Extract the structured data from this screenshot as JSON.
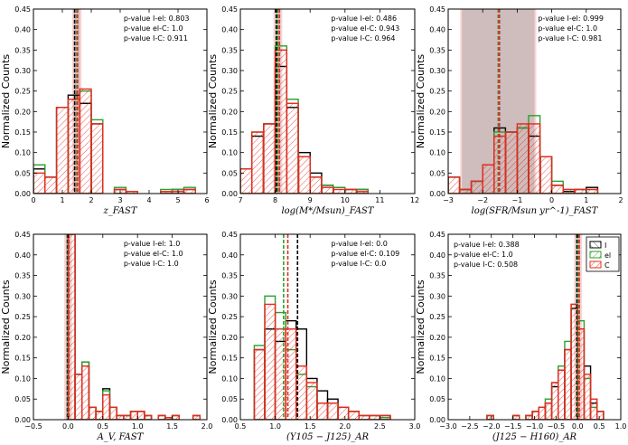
{
  "colors": {
    "I": "#000000",
    "el": "#2ca02c",
    "C": "#e8281e"
  },
  "legend": {
    "placement": "upper-right of bottom-right panel",
    "entries": [
      "I",
      "el",
      "C"
    ]
  },
  "chart_data": [
    {
      "type": "bar",
      "xlabel": "z_FAST",
      "ylabel": "Normalized Counts",
      "xlim": [
        0,
        6
      ],
      "ylim": [
        0,
        0.45
      ],
      "xticks": [
        "0",
        "1",
        "2",
        "3",
        "4",
        "5",
        "6"
      ],
      "yticks": [
        "0.00",
        "0.05",
        "0.10",
        "0.15",
        "0.20",
        "0.25",
        "0.30",
        "0.35",
        "0.40",
        "0.45"
      ],
      "annotations": [
        "p-value I-el: 0.803",
        "p-value el-C: 1.0",
        "p-value I-C: 0.911"
      ],
      "bin_edges": [
        0,
        0.4,
        0.8,
        1.2,
        1.6,
        2.0,
        2.4,
        2.8,
        3.2,
        3.6,
        4.0,
        4.4,
        4.8,
        5.2,
        5.6
      ],
      "series": [
        {
          "name": "I",
          "values": [
            0.06,
            0.04,
            0.21,
            0.24,
            0.22,
            0.17,
            0.0,
            0.01,
            0.0,
            0.0,
            0.0,
            0.005,
            0.01,
            0.01
          ]
        },
        {
          "name": "el",
          "values": [
            0.07,
            0.04,
            0.21,
            0.23,
            0.25,
            0.18,
            0.0,
            0.015,
            0.005,
            0.0,
            0.0,
            0.01,
            0.01,
            0.015
          ]
        },
        {
          "name": "C",
          "values": [
            0.05,
            0.04,
            0.21,
            0.23,
            0.255,
            0.17,
            0.0,
            0.01,
            0.005,
            0.0,
            0.0,
            0.005,
            0.005,
            0.01
          ]
        }
      ],
      "medians": {
        "I": 1.45,
        "el": 1.5,
        "C": 1.5
      },
      "shade": [
        1.4,
        1.6
      ]
    },
    {
      "type": "bar",
      "xlabel": "log(M*/Msun)_FAST",
      "ylabel": "Normalized Counts",
      "xlim": [
        7,
        12
      ],
      "ylim": [
        0,
        0.45
      ],
      "xticks": [
        "7",
        "8",
        "9",
        "10",
        "11",
        "12"
      ],
      "yticks": [
        "0.00",
        "0.05",
        "0.10",
        "0.15",
        "0.20",
        "0.25",
        "0.30",
        "0.35",
        "0.40",
        "0.45"
      ],
      "annotations": [
        "p-value I-el: 0.486",
        "p-value el-C: 0.943",
        "p-value I-C: 0.964"
      ],
      "bin_edges": [
        7.0,
        7.33,
        7.67,
        8.0,
        8.33,
        8.67,
        9.0,
        9.33,
        9.67,
        10.0,
        10.33,
        10.67,
        11.0,
        11.33,
        11.67
      ],
      "series": [
        {
          "name": "I",
          "values": [
            0.06,
            0.14,
            0.17,
            0.31,
            0.21,
            0.1,
            0.05,
            0.02,
            0.015,
            0.01,
            0.01,
            0.0,
            0.0,
            0.0
          ]
        },
        {
          "name": "el",
          "values": [
            0.06,
            0.15,
            0.17,
            0.36,
            0.23,
            0.09,
            0.04,
            0.02,
            0.015,
            0.01,
            0.01,
            0.0,
            0.0,
            0.0
          ]
        },
        {
          "name": "C",
          "values": [
            0.06,
            0.15,
            0.17,
            0.35,
            0.22,
            0.09,
            0.04,
            0.015,
            0.01,
            0.01,
            0.005,
            0.0,
            0.0,
            0.0
          ]
        }
      ],
      "medians": {
        "I": 8.05,
        "el": 8.07,
        "C": 8.1
      },
      "shade": [
        8.0,
        8.15
      ]
    },
    {
      "type": "bar",
      "xlabel": "log(SFR/Msun yr^-1)_FAST",
      "ylabel": "Normalized Counts",
      "xlim": [
        -3,
        2
      ],
      "ylim": [
        0,
        0.45
      ],
      "xticks": [
        "−3",
        "−2",
        "−1",
        "0",
        "1",
        "2"
      ],
      "yticks": [
        "0.00",
        "0.05",
        "0.10",
        "0.15",
        "0.20",
        "0.25",
        "0.30",
        "0.35",
        "0.40",
        "0.45"
      ],
      "annotations": [
        "p-value I-el: 0.999",
        "p-value el-C: 1.0",
        "p-value I-C: 0.981"
      ],
      "bin_edges": [
        -3.0,
        -2.67,
        -2.33,
        -2.0,
        -1.67,
        -1.33,
        -1.0,
        -0.67,
        -0.33,
        0.0,
        0.33,
        0.67,
        1.0,
        1.33,
        1.67
      ],
      "series": [
        {
          "name": "I",
          "values": [
            0.04,
            0.01,
            0.03,
            0.07,
            0.16,
            0.15,
            0.16,
            0.14,
            0.09,
            0.02,
            0.005,
            0.01,
            0.015,
            0.0
          ]
        },
        {
          "name": "el",
          "values": [
            0.04,
            0.01,
            0.03,
            0.07,
            0.15,
            0.15,
            0.16,
            0.19,
            0.09,
            0.03,
            0.01,
            0.01,
            0.01,
            0.0
          ]
        },
        {
          "name": "C",
          "values": [
            0.04,
            0.01,
            0.03,
            0.07,
            0.14,
            0.15,
            0.17,
            0.17,
            0.09,
            0.02,
            0.01,
            0.01,
            0.01,
            0.0
          ]
        }
      ],
      "medians": {
        "I": -1.5,
        "el": -1.55,
        "C": -1.55
      },
      "shade": [
        -2.6,
        -0.5
      ]
    },
    {
      "type": "bar",
      "xlabel": "A_V, FAST",
      "ylabel": "Normalized Counts",
      "xlim": [
        -0.5,
        2.0
      ],
      "ylim": [
        0,
        0.45
      ],
      "xticks": [
        "−0.5",
        "0.0",
        "0.5",
        "1.0",
        "1.5",
        "2.0"
      ],
      "yticks": [
        "0.00",
        "0.05",
        "0.10",
        "0.15",
        "0.20",
        "0.25",
        "0.30",
        "0.35",
        "0.40",
        "0.45"
      ],
      "annotations": [
        "p-value I-el: 1.0",
        "p-value el-C: 1.0",
        "p-value I-C: 1.0"
      ],
      "bin_edges": [
        0.0,
        0.1,
        0.2,
        0.3,
        0.4,
        0.5,
        0.6,
        0.7,
        0.8,
        0.9,
        1.0,
        1.1,
        1.2,
        1.3,
        1.4,
        1.5,
        1.6,
        1.7,
        1.8,
        1.9
      ],
      "series": [
        {
          "name": "I",
          "values": [
            0.45,
            0.11,
            0.14,
            0.03,
            0.02,
            0.075,
            0.03,
            0.01,
            0.01,
            0.02,
            0.02,
            0.01,
            0.0,
            0.01,
            0.005,
            0.01,
            0.0,
            0.0,
            0.01
          ]
        },
        {
          "name": "el",
          "values": [
            0.45,
            0.11,
            0.14,
            0.03,
            0.02,
            0.07,
            0.03,
            0.01,
            0.01,
            0.02,
            0.02,
            0.01,
            0.0,
            0.01,
            0.005,
            0.01,
            0.0,
            0.0,
            0.01
          ]
        },
        {
          "name": "C",
          "values": [
            0.45,
            0.11,
            0.13,
            0.03,
            0.02,
            0.06,
            0.03,
            0.01,
            0.01,
            0.02,
            0.02,
            0.01,
            0.0,
            0.01,
            0.005,
            0.01,
            0.0,
            0.0,
            0.01
          ]
        }
      ],
      "medians": {
        "I": 0.0,
        "el": 0.0,
        "C": 0.0
      },
      "shade": [
        -0.03,
        0.03
      ]
    },
    {
      "type": "bar",
      "xlabel": "(Y105 − J125)_AR",
      "ylabel": "Normalized Counts",
      "xlim": [
        0.5,
        3.0
      ],
      "ylim": [
        0,
        0.45
      ],
      "xticks": [
        "0.5",
        "1.0",
        "1.5",
        "2.0",
        "2.5",
        "3.0"
      ],
      "yticks": [
        "0.00",
        "0.05",
        "0.10",
        "0.15",
        "0.20",
        "0.25",
        "0.30",
        "0.35",
        "0.40",
        "0.45"
      ],
      "annotations": [
        "p-value I-el: 0.0",
        "p-value el-C: 0.109",
        "p-value I-C: 0.0"
      ],
      "bin_edges": [
        0.7,
        0.85,
        1.0,
        1.15,
        1.3,
        1.45,
        1.6,
        1.75,
        1.9,
        2.05,
        2.2,
        2.35,
        2.5,
        2.65
      ],
      "series": [
        {
          "name": "I",
          "values": [
            0.17,
            0.22,
            0.19,
            0.24,
            0.22,
            0.1,
            0.07,
            0.05,
            0.03,
            0.02,
            0.01,
            0.01,
            0.01
          ]
        },
        {
          "name": "el",
          "values": [
            0.18,
            0.3,
            0.26,
            0.17,
            0.11,
            0.08,
            0.04,
            0.04,
            0.03,
            0.02,
            0.01,
            0.01,
            0.005
          ]
        },
        {
          "name": "C",
          "values": [
            0.17,
            0.28,
            0.22,
            0.22,
            0.13,
            0.09,
            0.04,
            0.04,
            0.03,
            0.02,
            0.01,
            0.01,
            0.01
          ]
        }
      ],
      "medians": {
        "I": 1.33,
        "el": 1.12,
        "C": 1.17
      },
      "shade": null
    },
    {
      "type": "bar",
      "xlabel": "(J125 − H160)_AR",
      "ylabel": "Normalized Counts",
      "xlim": [
        -3.0,
        1.0
      ],
      "ylim": [
        0,
        0.45
      ],
      "xticks": [
        "−3.0",
        "−2.5",
        "−2.0",
        "−1.5",
        "−1.0",
        "−0.5",
        "0.0",
        "0.5",
        "1.0"
      ],
      "yticks": [
        "0.00",
        "0.05",
        "0.10",
        "0.15",
        "0.20",
        "0.25",
        "0.30",
        "0.35",
        "0.40",
        "0.45"
      ],
      "annotations": [
        "p-value I-el: 0.388",
        "p-value el-C: 1.0",
        "p-value I-C: 0.508"
      ],
      "bin_edges": [
        -2.1,
        -1.95,
        -1.8,
        -1.65,
        -1.5,
        -1.35,
        -1.2,
        -1.05,
        -0.9,
        -0.75,
        -0.6,
        -0.45,
        -0.3,
        -0.15,
        0.0,
        0.15,
        0.3,
        0.45,
        0.6
      ],
      "series": [
        {
          "name": "I",
          "values": [
            0.01,
            0.0,
            0.0,
            0.0,
            0.01,
            0.0,
            0.01,
            0.02,
            0.03,
            0.04,
            0.08,
            0.12,
            0.17,
            0.27,
            0.22,
            0.13,
            0.04,
            0.02
          ]
        },
        {
          "name": "el",
          "values": [
            0.01,
            0.0,
            0.0,
            0.0,
            0.01,
            0.0,
            0.01,
            0.02,
            0.03,
            0.05,
            0.09,
            0.13,
            0.19,
            0.28,
            0.24,
            0.1,
            0.03,
            0.02
          ]
        },
        {
          "name": "C",
          "values": [
            0.01,
            0.0,
            0.0,
            0.0,
            0.01,
            0.0,
            0.01,
            0.02,
            0.03,
            0.04,
            0.09,
            0.12,
            0.17,
            0.28,
            0.22,
            0.11,
            0.05,
            0.02
          ]
        }
      ],
      "medians": {
        "I": 0.0,
        "el": 0.01,
        "C": 0.02
      },
      "shade": [
        -0.04,
        0.06
      ]
    }
  ]
}
